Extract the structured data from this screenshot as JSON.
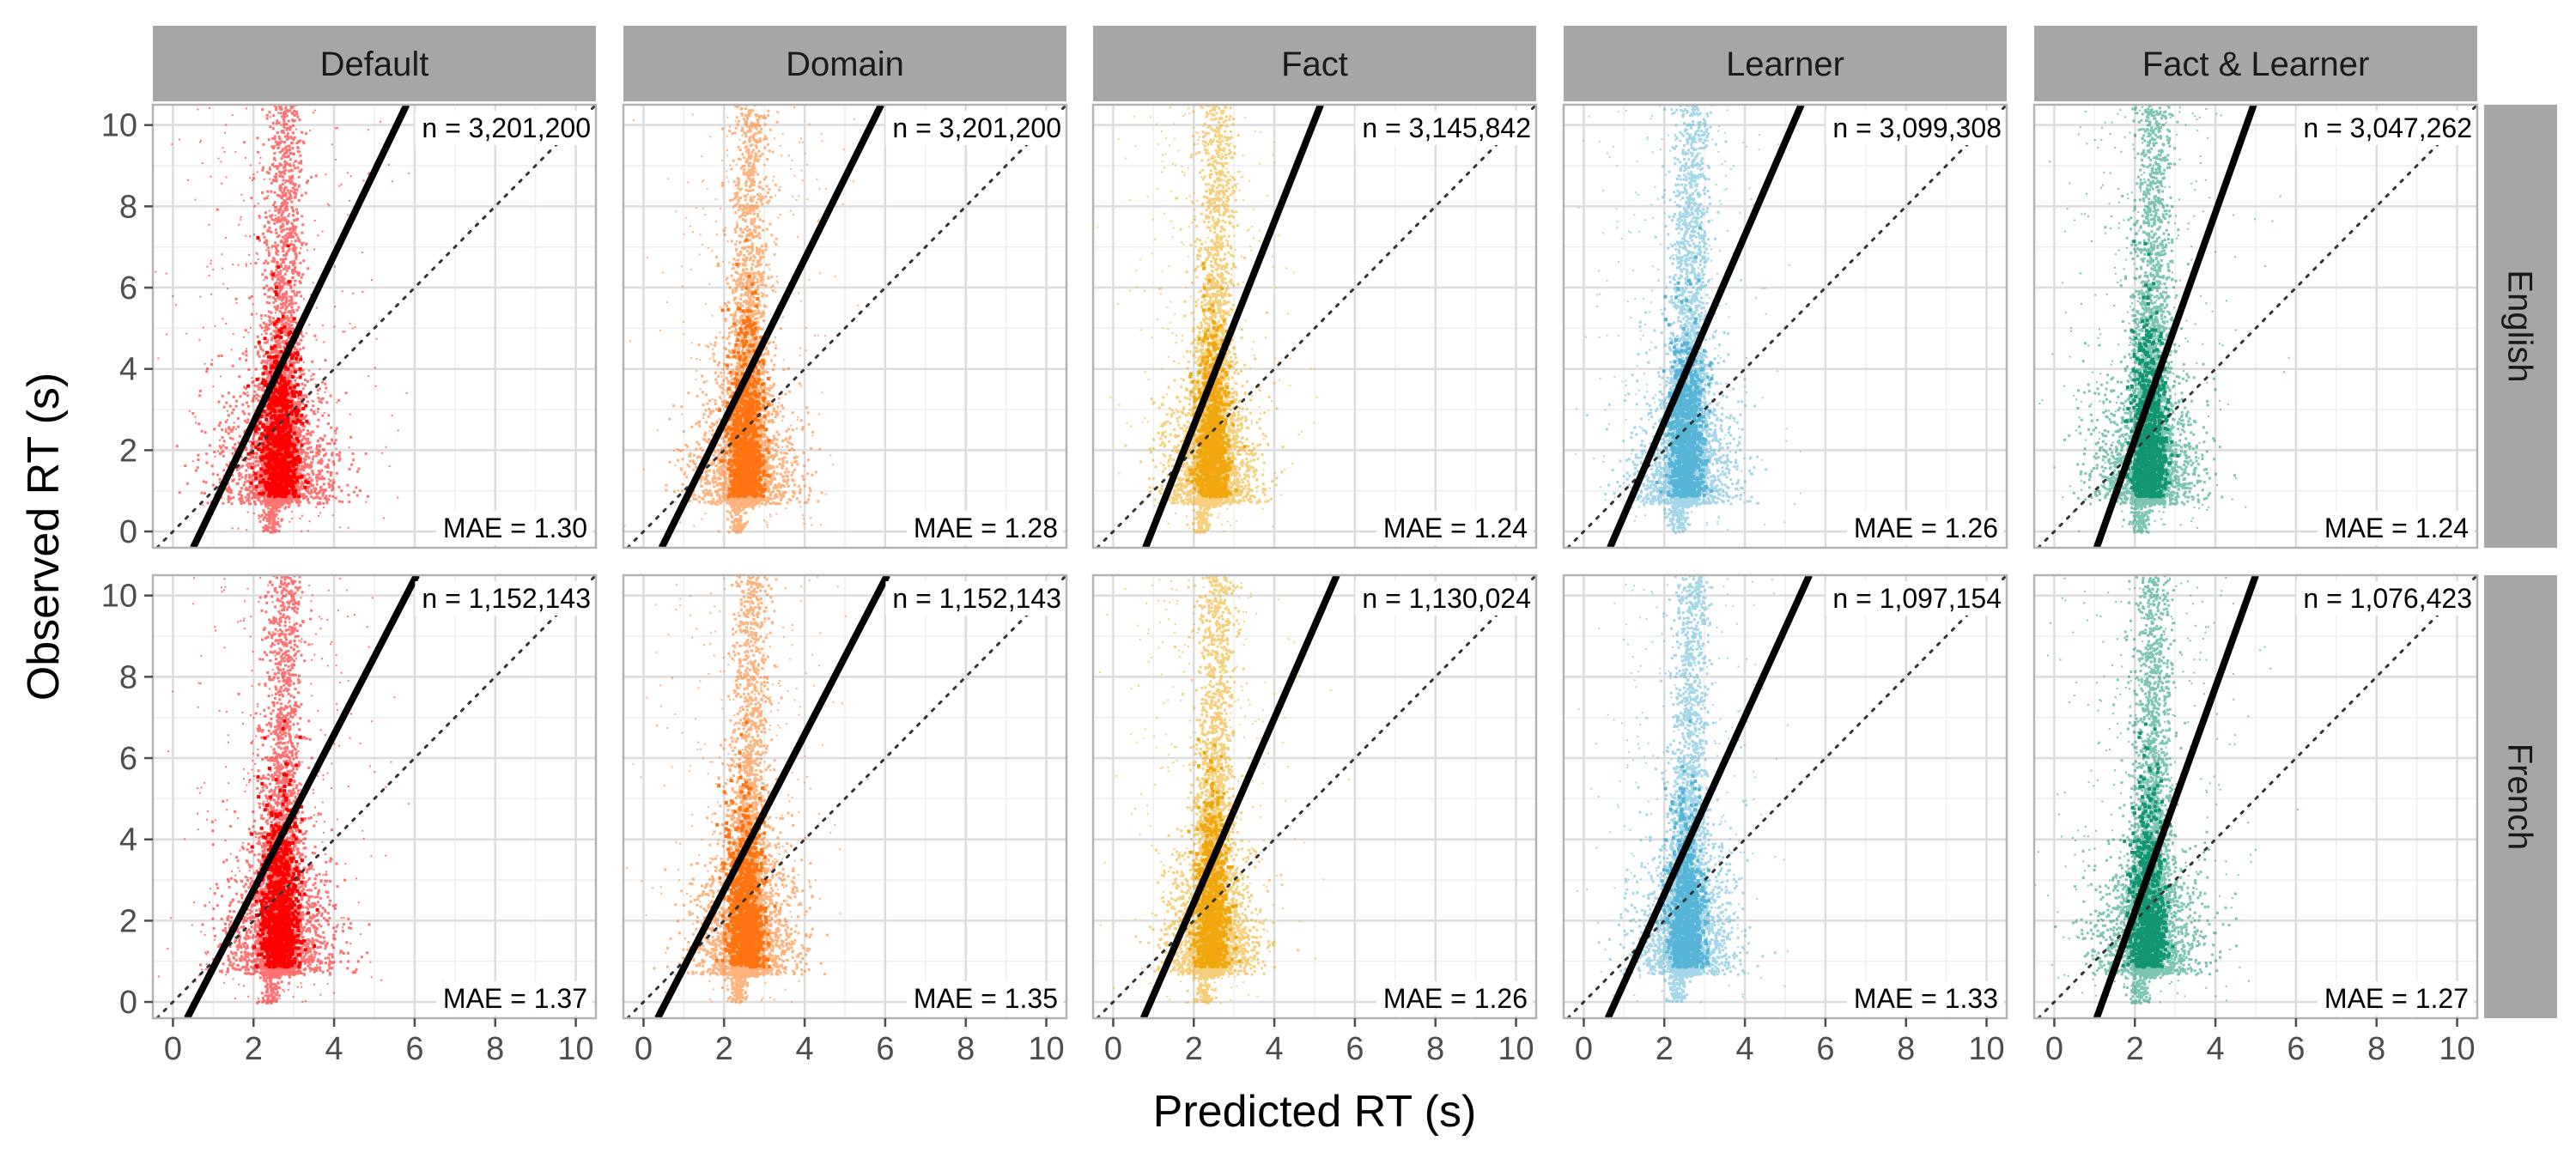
{
  "chart_data": {
    "type": "scatter",
    "facet_columns": [
      "Default",
      "Domain",
      "Fact",
      "Learner",
      "Fact & Learner"
    ],
    "facet_rows": [
      "English",
      "French"
    ],
    "xlabel": "Predicted RT (s)",
    "ylabel": "Observed RT (s)",
    "xlim": [
      -0.5,
      10.5
    ],
    "ylim": [
      -0.4,
      10.5
    ],
    "x_ticks": [
      0,
      2,
      4,
      6,
      8,
      10
    ],
    "y_ticks": [
      0,
      2,
      4,
      6,
      8,
      10
    ],
    "x_tick_labels": [
      "0",
      "2",
      "4",
      "6",
      "8",
      "10"
    ],
    "y_tick_labels": [
      "0",
      "2",
      "4",
      "6",
      "8",
      "10"
    ],
    "grid": true,
    "reference_line": {
      "style": "dotted",
      "intercept": 0,
      "slope": 1
    },
    "colors": {
      "Default": "#ff0000",
      "Domain": "#ff7310",
      "Fact": "#f0a70e",
      "Learner": "#56b4d6",
      "Fact & Learner": "#119572"
    },
    "panels": [
      {
        "row": "English",
        "col": "Default",
        "n_label": "n = 3,201,200",
        "mae_label": "MAE = 1.30",
        "fit_line": [
          [
            0.5,
            -0.4
          ],
          [
            5.8,
            10.5
          ]
        ],
        "center_x": 2.6,
        "spread_x": 0.8
      },
      {
        "row": "English",
        "col": "Domain",
        "n_label": "n = 3,201,200",
        "mae_label": "MAE = 1.28",
        "fit_line": [
          [
            0.45,
            -0.4
          ],
          [
            5.9,
            10.5
          ]
        ],
        "center_x": 2.5,
        "spread_x": 0.7
      },
      {
        "row": "English",
        "col": "Fact",
        "n_label": "n = 3,145,842",
        "mae_label": "MAE = 1.24",
        "fit_line": [
          [
            0.8,
            -0.4
          ],
          [
            5.15,
            10.5
          ]
        ],
        "center_x": 2.4,
        "spread_x": 0.65
      },
      {
        "row": "English",
        "col": "Learner",
        "n_label": "n = 3,099,308",
        "mae_label": "MAE = 1.26",
        "fit_line": [
          [
            0.65,
            -0.4
          ],
          [
            5.4,
            10.5
          ]
        ],
        "center_x": 2.5,
        "spread_x": 0.7
      },
      {
        "row": "English",
        "col": "Fact & Learner",
        "n_label": "n = 3,047,262",
        "mae_label": "MAE = 1.24",
        "fit_line": [
          [
            1.05,
            -0.4
          ],
          [
            4.95,
            10.5
          ]
        ],
        "center_x": 2.3,
        "spread_x": 0.75
      },
      {
        "row": "French",
        "col": "Default",
        "n_label": "n = 1,152,143",
        "mae_label": "MAE = 1.37",
        "fit_line": [
          [
            0.35,
            -0.4
          ],
          [
            6.05,
            10.5
          ]
        ],
        "center_x": 2.6,
        "spread_x": 0.8
      },
      {
        "row": "French",
        "col": "Domain",
        "n_label": "n = 1,152,143",
        "mae_label": "MAE = 1.35",
        "fit_line": [
          [
            0.35,
            -0.4
          ],
          [
            6.05,
            10.5
          ]
        ],
        "center_x": 2.5,
        "spread_x": 0.75
      },
      {
        "row": "French",
        "col": "Fact",
        "n_label": "n = 1,130,024",
        "mae_label": "MAE = 1.26",
        "fit_line": [
          [
            0.75,
            -0.4
          ],
          [
            5.55,
            10.5
          ]
        ],
        "center_x": 2.4,
        "spread_x": 0.65
      },
      {
        "row": "French",
        "col": "Learner",
        "n_label": "n = 1,097,154",
        "mae_label": "MAE = 1.33",
        "fit_line": [
          [
            0.6,
            -0.4
          ],
          [
            5.6,
            10.5
          ]
        ],
        "center_x": 2.5,
        "spread_x": 0.7
      },
      {
        "row": "French",
        "col": "Fact & Learner",
        "n_label": "n = 1,076,423",
        "mae_label": "MAE = 1.27",
        "fit_line": [
          [
            1.05,
            -0.4
          ],
          [
            5.0,
            10.5
          ]
        ],
        "center_x": 2.3,
        "spread_x": 0.75
      }
    ]
  }
}
